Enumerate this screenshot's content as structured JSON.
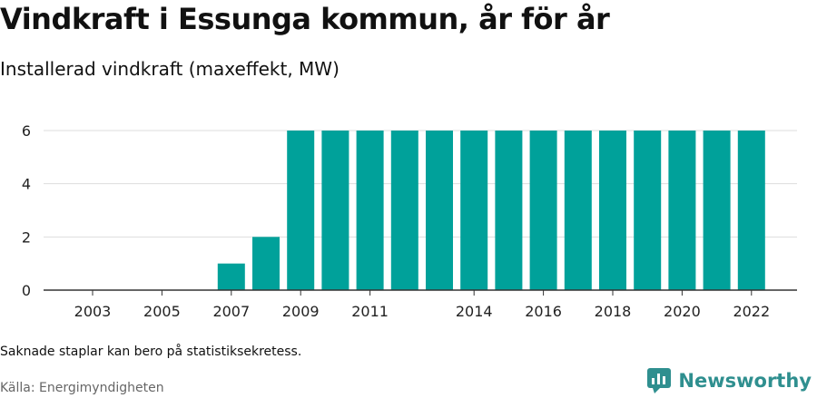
{
  "title": "Vindkraft i Essunga kommun, år för år",
  "subtitle": "Installerad vindkraft (maxeffekt, MW)",
  "footnote": "Saknade staplar kan bero på statistiksekretess.",
  "source": "Källa: Energimyndigheten",
  "brand": {
    "name": "Newsworthy",
    "icon": "newsworthy-logo-icon",
    "color": "#2f8f8f"
  },
  "chart_data": {
    "type": "bar",
    "categories": [
      "2003",
      "2004",
      "2005",
      "2006",
      "2007",
      "2008",
      "2009",
      "2010",
      "2011",
      "2012",
      "2013",
      "2014",
      "2015",
      "2016",
      "2017",
      "2018",
      "2019",
      "2020",
      "2021",
      "2022"
    ],
    "x_tick_labels": [
      "2003",
      "2005",
      "2007",
      "2009",
      "2011",
      "2014",
      "2016",
      "2018",
      "2020",
      "2022"
    ],
    "values": [
      0,
      0,
      0,
      0,
      1,
      2,
      6,
      6,
      6,
      6,
      6,
      6,
      6,
      6,
      6,
      6,
      6,
      6,
      6,
      6
    ],
    "y_ticks": [
      0,
      2,
      4,
      6
    ],
    "ylim": [
      0,
      6
    ],
    "grid": true,
    "bar_color": "#00a19a"
  }
}
